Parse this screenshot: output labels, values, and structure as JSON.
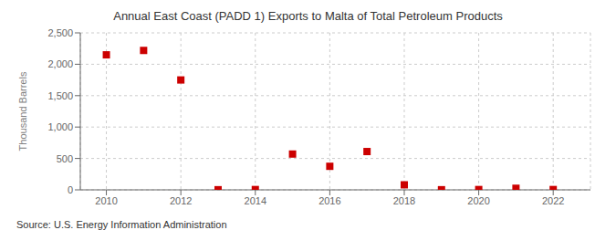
{
  "chart_data": {
    "type": "scatter",
    "title": "Annual East Coast (PADD 1) Exports to Malta of Total Petroleum Products",
    "ylabel": "Thousand Barrels",
    "source": "Source: U.S. Energy Information Administration",
    "x": [
      2010,
      2011,
      2012,
      2013,
      2014,
      2015,
      2016,
      2017,
      2018,
      2019,
      2020,
      2021,
      2022
    ],
    "values": [
      2150,
      2220,
      1750,
      2,
      5,
      570,
      375,
      610,
      80,
      2,
      5,
      25,
      5
    ],
    "color": "#cc0000",
    "marker": "square",
    "xlim": [
      2009.3,
      2023.0
    ],
    "xticks": [
      2010,
      2012,
      2014,
      2016,
      2018,
      2020,
      2022
    ],
    "ylim": [
      0,
      2500
    ],
    "yticks": [
      0,
      500,
      {
        "value": 1000,
        "label": "1,000"
      },
      {
        "value": 1500,
        "label": "1,500"
      },
      {
        "value": 2000,
        "label": "2,000"
      },
      {
        "value": 2500,
        "label": "2,500"
      }
    ],
    "grid": true
  }
}
